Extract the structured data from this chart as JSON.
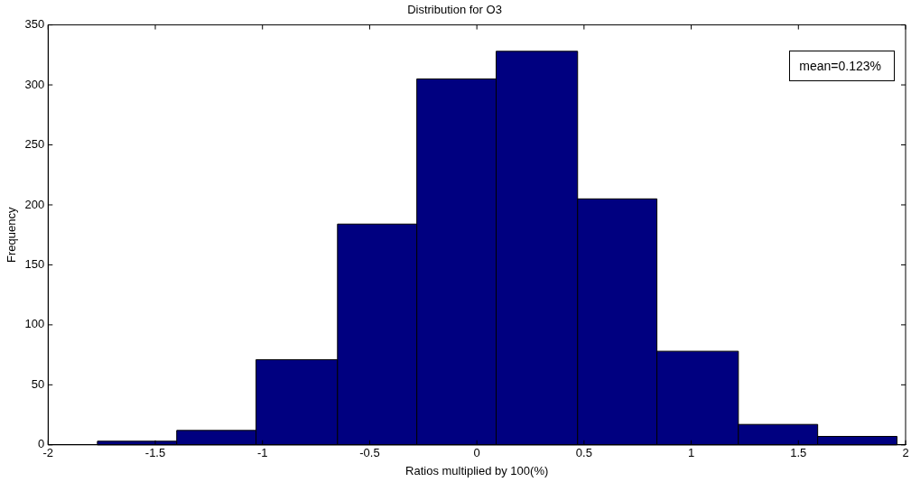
{
  "chart_data": {
    "type": "histogram",
    "title": "Distribution for O3",
    "xlabel": "Ratios multiplied by 100(%)",
    "ylabel": "Frequency",
    "bins": [
      -1.77,
      -1.4,
      -1.03,
      -0.65,
      -0.28,
      0.09,
      0.47,
      0.84,
      1.22,
      1.59,
      1.96
    ],
    "values": [
      3,
      12,
      71,
      184,
      305,
      328,
      205,
      78,
      17,
      7
    ],
    "color": "#000080",
    "xlim": [
      -2,
      2
    ],
    "xticks": [
      -2,
      -1.5,
      -1,
      -0.5,
      0,
      0.5,
      1,
      1.5,
      2
    ],
    "ylim": [
      0,
      350
    ],
    "yticks": [
      0,
      50,
      100,
      150,
      200,
      250,
      300,
      350
    ],
    "annotations": [
      "mean=0.123%"
    ]
  }
}
